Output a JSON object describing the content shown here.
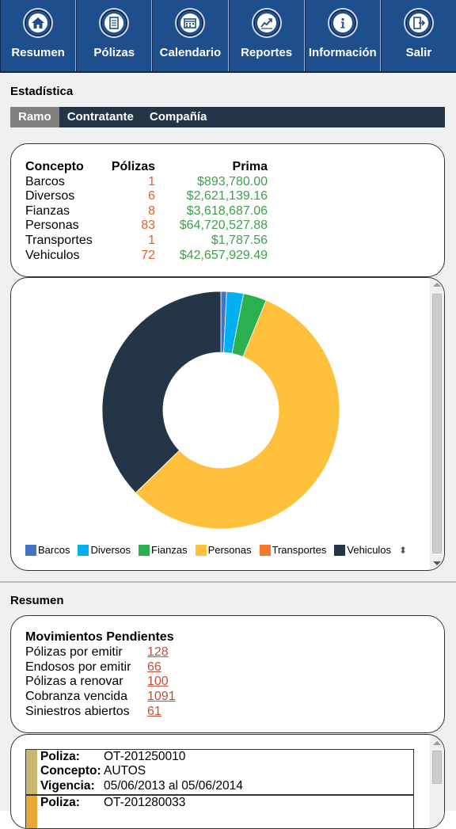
{
  "nav": [
    {
      "label": "Resumen",
      "icon": "home-icon"
    },
    {
      "label": "Pólizas",
      "icon": "document-icon"
    },
    {
      "label": "Calendario",
      "icon": "calendar-icon"
    },
    {
      "label": "Reportes",
      "icon": "chart-icon"
    },
    {
      "label": "Información",
      "icon": "info-icon"
    },
    {
      "label": "Salir",
      "icon": "exit-icon"
    }
  ],
  "estadistica": {
    "title": "Estadística",
    "tabs": [
      "Ramo",
      "Contratante",
      "Compañía"
    ],
    "active_tab": "Ramo",
    "headers": {
      "concepto": "Concepto",
      "polizas": "Pólizas",
      "prima": "Prima"
    },
    "rows": [
      {
        "concepto": "Barcos",
        "polizas": "1",
        "prima": "$893,780.00"
      },
      {
        "concepto": "Diversos",
        "polizas": "6",
        "prima": "$2,621,139.16"
      },
      {
        "concepto": "Fianzas",
        "polizas": "8",
        "prima": "$3,618,687.06"
      },
      {
        "concepto": "Personas",
        "polizas": "83",
        "prima": "$64,720,527.88"
      },
      {
        "concepto": "Transportes",
        "polizas": "1",
        "prima": "$1,787.56"
      },
      {
        "concepto": "Vehiculos",
        "polizas": "72",
        "prima": "$42,657,929.49"
      }
    ]
  },
  "chart_data": {
    "type": "pie",
    "categories": [
      "Barcos",
      "Diversos",
      "Fianzas",
      "Personas",
      "Transportes",
      "Vehiculos"
    ],
    "values": [
      893780.0,
      2621139.16,
      3618687.06,
      64720527.88,
      1787.56,
      42657929.49
    ],
    "colors": [
      "#4472c4",
      "#00b0f0",
      "#2bb04f",
      "#ffc13b",
      "#f47a2a",
      "#243548"
    ],
    "donut": true,
    "legend_position": "bottom"
  },
  "resumen": {
    "title": "Resumen",
    "movimientos_title": "Movimientos Pendientes",
    "items": [
      {
        "label": "Pólizas por emitir",
        "value": "128"
      },
      {
        "label": "Endosos por emitir",
        "value": "66"
      },
      {
        "label": "Pólizas a renovar",
        "value": "100"
      },
      {
        "label": "Cobranza vencida",
        "value": "1091"
      },
      {
        "label": "Siniestros abiertos",
        "value": "61"
      }
    ]
  },
  "polizas_list": [
    {
      "poliza_label": "Poliza:",
      "poliza": "OT-201250010",
      "concepto_label": "Concepto:",
      "concepto": "AUTOS",
      "vigencia_label": "Vigencia:",
      "vigencia": "05/06/2013 al 05/06/2014",
      "stripe": "#c9b870"
    },
    {
      "poliza_label": "Poliza:",
      "poliza": "OT-201280033",
      "stripe": "#e8a838"
    }
  ]
}
